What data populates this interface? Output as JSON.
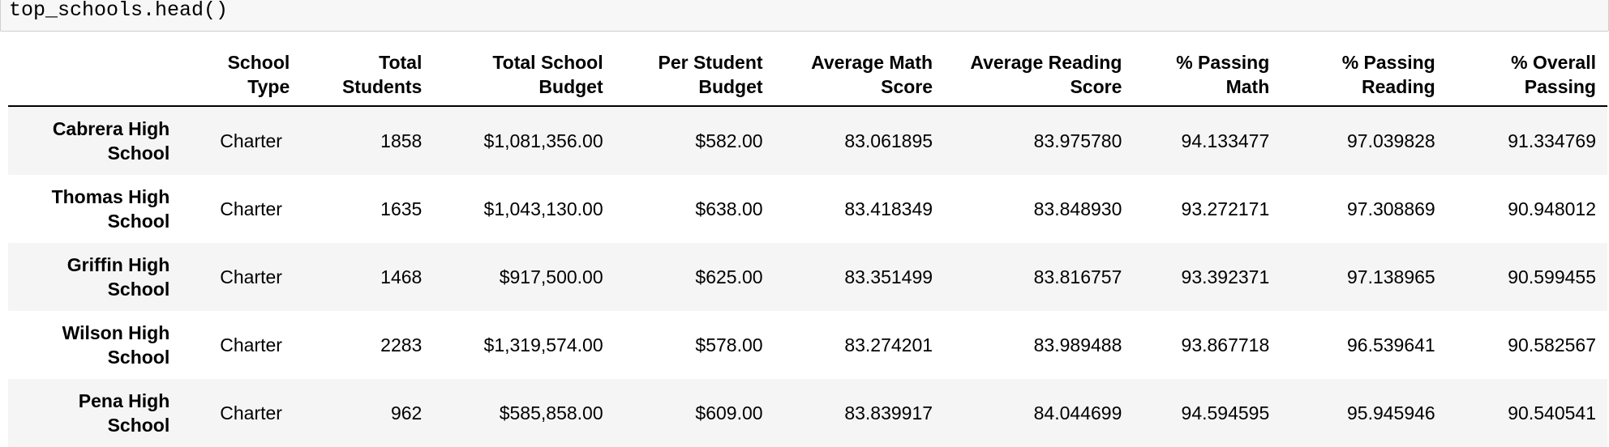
{
  "code_cell": {
    "source": "top_schools.head()"
  },
  "table": {
    "index_header": "",
    "columns": [
      "School Type",
      "Total Students",
      "Total School Budget",
      "Per Student Budget",
      "Average Math Score",
      "Average Reading Score",
      "% Passing Math",
      "% Passing Reading",
      "% Overall Passing"
    ],
    "rows": [
      {
        "school": "Cabrera High School",
        "type": "Charter",
        "students": "1858",
        "budget": "$1,081,356.00",
        "per_student": "$582.00",
        "math": "83.061895",
        "reading": "83.975780",
        "pass_math": "94.133477",
        "pass_reading": "97.039828",
        "overall": "91.334769"
      },
      {
        "school": "Thomas High School",
        "type": "Charter",
        "students": "1635",
        "budget": "$1,043,130.00",
        "per_student": "$638.00",
        "math": "83.418349",
        "reading": "83.848930",
        "pass_math": "93.272171",
        "pass_reading": "97.308869",
        "overall": "90.948012"
      },
      {
        "school": "Griffin High School",
        "type": "Charter",
        "students": "1468",
        "budget": "$917,500.00",
        "per_student": "$625.00",
        "math": "83.351499",
        "reading": "83.816757",
        "pass_math": "93.392371",
        "pass_reading": "97.138965",
        "overall": "90.599455"
      },
      {
        "school": "Wilson High School",
        "type": "Charter",
        "students": "2283",
        "budget": "$1,319,574.00",
        "per_student": "$578.00",
        "math": "83.274201",
        "reading": "83.989488",
        "pass_math": "93.867718",
        "pass_reading": "96.539641",
        "overall": "90.582567"
      },
      {
        "school": "Pena High School",
        "type": "Charter",
        "students": "962",
        "budget": "$585,858.00",
        "per_student": "$609.00",
        "math": "83.839917",
        "reading": "84.044699",
        "pass_math": "94.594595",
        "pass_reading": "95.945946",
        "overall": "90.540541"
      }
    ]
  }
}
